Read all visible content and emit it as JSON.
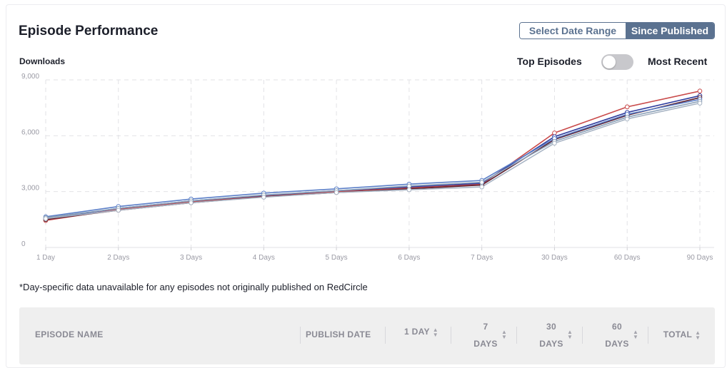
{
  "header": {
    "title": "Episode Performance",
    "range_buttons": [
      "Select Date Range",
      "Since Published"
    ]
  },
  "chart_header": {
    "ylabel": "Downloads",
    "toggle_left": "Top Episodes",
    "toggle_right": "Most Recent"
  },
  "note": "*Day-specific data unavailable for any episodes not originally published on RedCircle",
  "table": {
    "columns": [
      {
        "line1": "",
        "line2": "EPISODE NAME"
      },
      {
        "line1": "",
        "line2": "PUBLISH DATE"
      },
      {
        "line1": "",
        "line2": "1 DAY"
      },
      {
        "line1": "7",
        "line2": "DAYS"
      },
      {
        "line1": "30",
        "line2": "DAYS"
      },
      {
        "line1": "60",
        "line2": "DAYS"
      },
      {
        "line1": "",
        "line2": "TOTAL"
      }
    ]
  },
  "chart_data": {
    "type": "line",
    "categories": [
      "1 Day",
      "2 Days",
      "3 Days",
      "4 Days",
      "5 Days",
      "6 Days",
      "7 Days",
      "30 Days",
      "60 Days",
      "90 Days"
    ],
    "ylim": [
      0,
      9000
    ],
    "yticks": [
      "0",
      "3,000",
      "6,000",
      "9,000"
    ],
    "ytick_values": [
      0,
      3000,
      6000,
      9000
    ],
    "grid": true,
    "series": [
      {
        "color": "#c94b4b",
        "values": [
          1450,
          2050,
          2450,
          2750,
          3000,
          3200,
          3400,
          6150,
          7550,
          8400
        ]
      },
      {
        "color": "#2f3d9e",
        "values": [
          1550,
          2100,
          2500,
          2800,
          3050,
          3250,
          3450,
          5950,
          7250,
          8150
        ]
      },
      {
        "color": "#5b1f2e",
        "values": [
          1500,
          2000,
          2400,
          2720,
          2950,
          3150,
          3350,
          5800,
          7100,
          8050
        ]
      },
      {
        "color": "#5b7fc8",
        "values": [
          1650,
          2200,
          2600,
          2920,
          3150,
          3400,
          3600,
          5850,
          7150,
          7950
        ]
      },
      {
        "color": "#8aa0b8",
        "values": [
          1600,
          2100,
          2500,
          2820,
          3050,
          3300,
          3500,
          5700,
          7000,
          7850
        ]
      },
      {
        "color": "#a8b4c4",
        "values": [
          1550,
          2000,
          2400,
          2700,
          2950,
          3100,
          3250,
          5600,
          6900,
          7750
        ]
      }
    ]
  }
}
